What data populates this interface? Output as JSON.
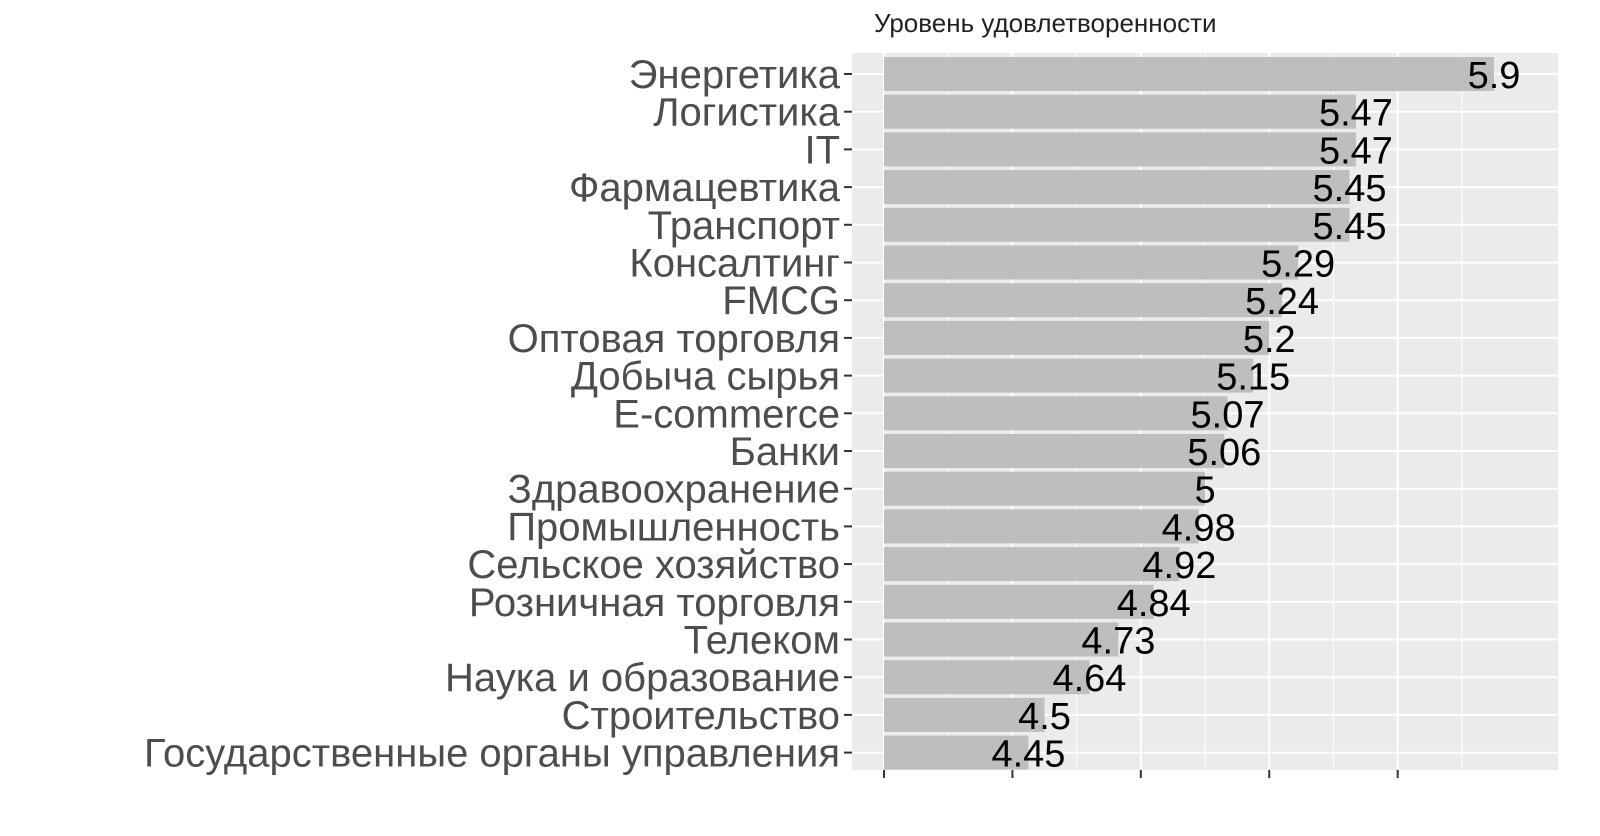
{
  "chart_data": {
    "type": "bar",
    "orientation": "horizontal",
    "title": "Уровень удовлетворенности",
    "xlabel": "",
    "ylabel": "",
    "categories": [
      "Энергетика",
      "Логистика",
      "IT",
      "Фармацевтика",
      "Транспорт",
      "Консалтинг",
      "FMCG",
      "Оптовая торговля",
      "Добыча сырья",
      "E-commerce",
      "Банки",
      "Здравоохранение",
      "Промышленность",
      "Сельское хозяйство",
      "Розничная торговля",
      "Телеком",
      "Наука и образование",
      "Строительство",
      "Государственные органы управления"
    ],
    "values": [
      5.9,
      5.47,
      5.47,
      5.45,
      5.45,
      5.29,
      5.24,
      5.2,
      5.15,
      5.07,
      5.06,
      5,
      4.98,
      4.92,
      4.84,
      4.73,
      4.64,
      4.5,
      4.45
    ],
    "data_labels": [
      "5.9",
      "5.47",
      "5.47",
      "5.45",
      "5.45",
      "5.29",
      "5.24",
      "5.2",
      "5.15",
      "5.07",
      "5.06",
      "5",
      "4.98",
      "4.92",
      "4.84",
      "4.73",
      "4.64",
      "4.5",
      "4.45"
    ],
    "xlim": [
      4.0,
      6.0
    ],
    "x_major_ticks": [
      4.0,
      4.4,
      4.8,
      5.2,
      5.6
    ],
    "x_minor_ticks": [
      4.2,
      4.6,
      5.0,
      5.4,
      5.8
    ],
    "x_tick_labels_visible": false,
    "grid": true,
    "legend": "none",
    "colors": {
      "bar": "#bebebe",
      "panel_background": "#ebebeb",
      "grid": "#ffffff",
      "category_text": "#4d4d4d",
      "value_text": "#000000",
      "tick": "#333333"
    }
  }
}
